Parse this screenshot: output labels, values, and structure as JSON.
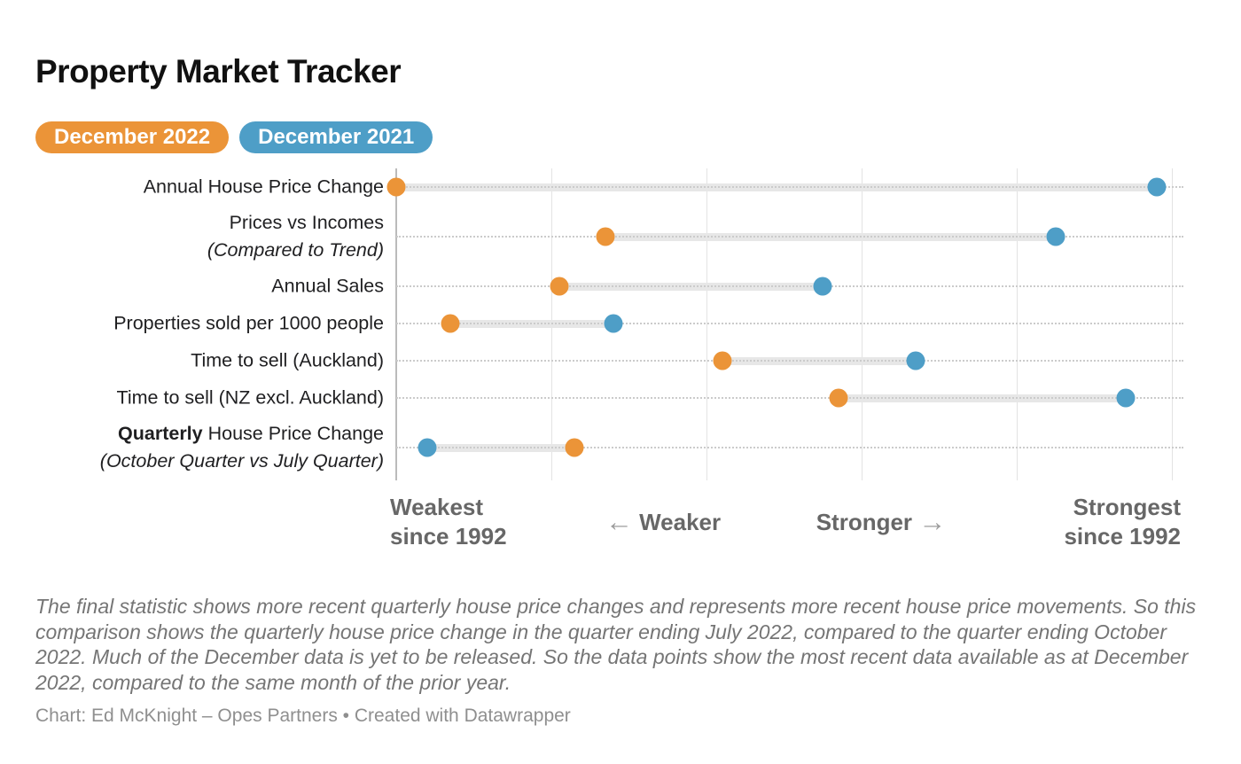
{
  "header": {
    "title": "Property Market Tracker"
  },
  "legend": [
    {
      "label": "December 2022",
      "color": "#EB9438"
    },
    {
      "label": "December 2021",
      "color": "#4E9EC7"
    }
  ],
  "chart_data": {
    "type": "dumbbell",
    "title": "Property Market Tracker",
    "series_names": [
      "December 2022",
      "December 2021"
    ],
    "x_scale": {
      "min": 0,
      "max": 100,
      "note": "Qualitative strength scale: 0 = Weakest since 1992, 100 = Strongest since 1992; positions estimated from gridlines",
      "gridlines_pct": [
        0,
        20,
        40,
        60,
        80,
        100
      ],
      "axis_labels": [
        "Weakest since 1992",
        "Weaker",
        "Stronger",
        "Strongest since 1992"
      ]
    },
    "grid": "vertical lines on, dotted horizontal leader line per row",
    "legend_position": "top-left pills",
    "rows": [
      {
        "label": "Annual House Price Change",
        "values": {
          "dec2022": 0,
          "dec2021": 98
        }
      },
      {
        "label": "Prices vs Incomes",
        "sublabel": "(Compared to Trend)",
        "values": {
          "dec2022": 27,
          "dec2021": 85
        }
      },
      {
        "label": "Annual Sales",
        "values": {
          "dec2022": 21,
          "dec2021": 55
        }
      },
      {
        "label": "Properties sold per 1000 people",
        "values": {
          "dec2022": 7,
          "dec2021": 28
        }
      },
      {
        "label": "Time to sell (Auckland)",
        "values": {
          "dec2022": 42,
          "dec2021": 67
        }
      },
      {
        "label": "Time to sell (NZ excl. Auckland)",
        "values": {
          "dec2022": 57,
          "dec2021": 94
        }
      },
      {
        "label_bold": "Quarterly",
        "label": " House Price Change",
        "sublabel": "(October Quarter vs July Quarter)",
        "values": {
          "dec2022": 23,
          "dec2021": 4
        }
      }
    ],
    "colors": {
      "dec2022": "#EB9438",
      "dec2021": "#4E9EC7",
      "connector": "#E7E7E7"
    }
  },
  "axis": {
    "weakest": {
      "line1": "Weakest",
      "line2": "since 1992"
    },
    "weaker": {
      "arrow": "←",
      "label": "Weaker"
    },
    "stronger": {
      "label": "Stronger",
      "arrow": "→"
    },
    "strongest": {
      "line1": "Strongest",
      "line2": "since 1992"
    }
  },
  "footnote": "The final statistic shows more recent quarterly house price changes and represents more recent house price movements. So this comparison shows the quarterly house price change in the quarter ending July 2022, compared to the quarter ending October 2022. Much of the December data is yet to be released. So the data points show the most recent data available as at December 2022, compared to the same month of the prior year.",
  "credit": "Chart: Ed McKnight – Opes Partners • Created with Datawrapper"
}
